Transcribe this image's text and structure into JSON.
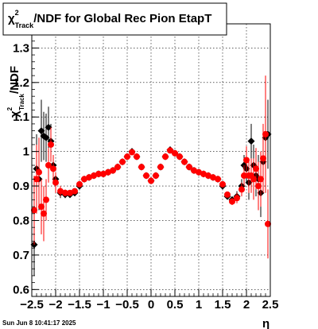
{
  "chart_data": {
    "type": "scatter",
    "title_parts": [
      "χ",
      "2",
      "Track",
      "/NDF for Global Rec Pion EtapT"
    ],
    "ylabel_parts": [
      "χ",
      "2",
      "Track",
      "/NDF"
    ],
    "xlabel": "η",
    "xlim": [
      -2.5,
      2.5
    ],
    "ylim": [
      0.58,
      1.37
    ],
    "grid": true,
    "x_ticks": [
      "−2.5",
      "−2",
      "−1.5",
      "−1",
      "−0.5",
      "0",
      "0.5",
      "1",
      "1.5",
      "2",
      "2.5"
    ],
    "x_tick_values": [
      -2.5,
      -2,
      -1.5,
      -1,
      -0.5,
      0,
      0.5,
      1,
      1.5,
      2,
      2.5
    ],
    "y_ticks": [
      "0.6",
      "0.7",
      "0.8",
      "0.9",
      "1",
      "1.1",
      "1.2",
      "1.3"
    ],
    "y_tick_values": [
      0.6,
      0.7,
      0.8,
      0.9,
      1.0,
      1.1,
      1.2,
      1.3
    ],
    "series": [
      {
        "color": "#000000",
        "points": [
          {
            "x": -2.45,
            "y": 0.73,
            "err": 0.09
          },
          {
            "x": -2.4,
            "y": 0.95,
            "err": 0.1
          },
          {
            "x": -2.35,
            "y": 0.92,
            "err": 0.09
          },
          {
            "x": -2.3,
            "y": 1.06,
            "err": 0.09
          },
          {
            "x": -2.25,
            "y": 1.045,
            "err": 0.07
          },
          {
            "x": -2.2,
            "y": 1.04,
            "err": 0.07
          },
          {
            "x": -2.15,
            "y": 1.07,
            "err": 0.06
          },
          {
            "x": -2.1,
            "y": 1.03,
            "err": 0.05
          },
          {
            "x": -2.05,
            "y": 0.96,
            "err": 0.03
          },
          {
            "x": -2.0,
            "y": 0.92,
            "err": 0.02
          },
          {
            "x": -1.9,
            "y": 0.88,
            "err": 0.015
          },
          {
            "x": -1.8,
            "y": 0.875,
            "err": 0.01
          },
          {
            "x": -1.7,
            "y": 0.875,
            "err": 0.008
          },
          {
            "x": -1.6,
            "y": 0.88,
            "err": 0.006
          },
          {
            "x": -1.5,
            "y": 0.9,
            "err": 0.005
          },
          {
            "x": -1.4,
            "y": 0.92,
            "err": 0.005
          },
          {
            "x": -1.3,
            "y": 0.925,
            "err": 0.005
          },
          {
            "x": -1.2,
            "y": 0.93,
            "err": 0.005
          },
          {
            "x": -1.1,
            "y": 0.935,
            "err": 0.005
          },
          {
            "x": -1.0,
            "y": 0.935,
            "err": 0.005
          },
          {
            "x": -0.9,
            "y": 0.94,
            "err": 0.005
          },
          {
            "x": -0.8,
            "y": 0.945,
            "err": 0.005
          },
          {
            "x": -0.7,
            "y": 0.955,
            "err": 0.005
          },
          {
            "x": -0.6,
            "y": 0.97,
            "err": 0.005
          },
          {
            "x": -0.5,
            "y": 0.985,
            "err": 0.005
          },
          {
            "x": -0.4,
            "y": 1.0,
            "err": 0.005
          },
          {
            "x": -0.3,
            "y": 0.985,
            "err": 0.005
          },
          {
            "x": -0.2,
            "y": 0.955,
            "err": 0.005
          },
          {
            "x": -0.1,
            "y": 0.93,
            "err": 0.005
          },
          {
            "x": 0.0,
            "y": 0.915,
            "err": 0.005
          },
          {
            "x": 0.1,
            "y": 0.93,
            "err": 0.005
          },
          {
            "x": 0.2,
            "y": 0.955,
            "err": 0.005
          },
          {
            "x": 0.3,
            "y": 0.985,
            "err": 0.005
          },
          {
            "x": 0.4,
            "y": 1.005,
            "err": 0.005
          },
          {
            "x": 0.5,
            "y": 0.995,
            "err": 0.005
          },
          {
            "x": 0.6,
            "y": 0.985,
            "err": 0.005
          },
          {
            "x": 0.7,
            "y": 0.97,
            "err": 0.005
          },
          {
            "x": 0.8,
            "y": 0.955,
            "err": 0.005
          },
          {
            "x": 0.9,
            "y": 0.945,
            "err": 0.005
          },
          {
            "x": 1.0,
            "y": 0.94,
            "err": 0.005
          },
          {
            "x": 1.1,
            "y": 0.935,
            "err": 0.005
          },
          {
            "x": 1.2,
            "y": 0.93,
            "err": 0.005
          },
          {
            "x": 1.3,
            "y": 0.925,
            "err": 0.005
          },
          {
            "x": 1.4,
            "y": 0.92,
            "err": 0.005
          },
          {
            "x": 1.5,
            "y": 0.9,
            "err": 0.006
          },
          {
            "x": 1.6,
            "y": 0.87,
            "err": 0.008
          },
          {
            "x": 1.7,
            "y": 0.86,
            "err": 0.01
          },
          {
            "x": 1.8,
            "y": 0.87,
            "err": 0.015
          },
          {
            "x": 1.9,
            "y": 0.9,
            "err": 0.02
          },
          {
            "x": 1.95,
            "y": 0.96,
            "err": 0.03
          },
          {
            "x": 2.0,
            "y": 0.95,
            "err": 0.04
          },
          {
            "x": 2.05,
            "y": 0.91,
            "err": 0.05
          },
          {
            "x": 2.1,
            "y": 1.03,
            "err": 0.05
          },
          {
            "x": 2.15,
            "y": 0.96,
            "err": 0.06
          },
          {
            "x": 2.2,
            "y": 0.93,
            "err": 0.06
          },
          {
            "x": 2.25,
            "y": 0.92,
            "err": 0.07
          },
          {
            "x": 2.3,
            "y": 0.88,
            "err": 0.07
          },
          {
            "x": 2.35,
            "y": 0.97,
            "err": 0.08
          },
          {
            "x": 2.4,
            "y": 1.04,
            "err": 0.08
          },
          {
            "x": 2.45,
            "y": 1.05,
            "err": 0.1
          }
        ]
      },
      {
        "color": "#ff0000",
        "points": [
          {
            "x": -2.45,
            "y": 0.83,
            "err": 0.1
          },
          {
            "x": -2.4,
            "y": 0.92,
            "err": 0.1
          },
          {
            "x": -2.35,
            "y": 0.94,
            "err": 0.1
          },
          {
            "x": -2.3,
            "y": 0.84,
            "err": 0.08
          },
          {
            "x": -2.25,
            "y": 0.82,
            "err": 0.08
          },
          {
            "x": -2.2,
            "y": 0.86,
            "err": 0.06
          },
          {
            "x": -2.15,
            "y": 0.96,
            "err": 0.05
          },
          {
            "x": -2.1,
            "y": 1.02,
            "err": 0.05
          },
          {
            "x": -2.05,
            "y": 0.95,
            "err": 0.04
          },
          {
            "x": -2.0,
            "y": 0.91,
            "err": 0.03
          },
          {
            "x": -1.9,
            "y": 0.885,
            "err": 0.015
          },
          {
            "x": -1.8,
            "y": 0.88,
            "err": 0.01
          },
          {
            "x": -1.7,
            "y": 0.88,
            "err": 0.008
          },
          {
            "x": -1.6,
            "y": 0.885,
            "err": 0.006
          },
          {
            "x": -1.5,
            "y": 0.905,
            "err": 0.005
          },
          {
            "x": -1.4,
            "y": 0.92,
            "err": 0.005
          },
          {
            "x": -1.3,
            "y": 0.925,
            "err": 0.005
          },
          {
            "x": -1.2,
            "y": 0.93,
            "err": 0.005
          },
          {
            "x": -1.1,
            "y": 0.935,
            "err": 0.005
          },
          {
            "x": -1.0,
            "y": 0.935,
            "err": 0.005
          },
          {
            "x": -0.9,
            "y": 0.94,
            "err": 0.005
          },
          {
            "x": -0.8,
            "y": 0.945,
            "err": 0.005
          },
          {
            "x": -0.7,
            "y": 0.955,
            "err": 0.005
          },
          {
            "x": -0.6,
            "y": 0.97,
            "err": 0.005
          },
          {
            "x": -0.5,
            "y": 0.985,
            "err": 0.005
          },
          {
            "x": -0.4,
            "y": 0.998,
            "err": 0.005
          },
          {
            "x": -0.3,
            "y": 0.985,
            "err": 0.005
          },
          {
            "x": -0.2,
            "y": 0.955,
            "err": 0.005
          },
          {
            "x": -0.1,
            "y": 0.93,
            "err": 0.005
          },
          {
            "x": 0.0,
            "y": 0.915,
            "err": 0.005
          },
          {
            "x": 0.1,
            "y": 0.93,
            "err": 0.005
          },
          {
            "x": 0.2,
            "y": 0.955,
            "err": 0.005
          },
          {
            "x": 0.3,
            "y": 0.985,
            "err": 0.005
          },
          {
            "x": 0.4,
            "y": 1.003,
            "err": 0.005
          },
          {
            "x": 0.5,
            "y": 0.995,
            "err": 0.005
          },
          {
            "x": 0.6,
            "y": 0.985,
            "err": 0.005
          },
          {
            "x": 0.7,
            "y": 0.97,
            "err": 0.005
          },
          {
            "x": 0.8,
            "y": 0.955,
            "err": 0.005
          },
          {
            "x": 0.9,
            "y": 0.945,
            "err": 0.005
          },
          {
            "x": 1.0,
            "y": 0.94,
            "err": 0.005
          },
          {
            "x": 1.1,
            "y": 0.935,
            "err": 0.005
          },
          {
            "x": 1.2,
            "y": 0.93,
            "err": 0.005
          },
          {
            "x": 1.3,
            "y": 0.925,
            "err": 0.005
          },
          {
            "x": 1.4,
            "y": 0.92,
            "err": 0.005
          },
          {
            "x": 1.5,
            "y": 0.905,
            "err": 0.006
          },
          {
            "x": 1.6,
            "y": 0.875,
            "err": 0.008
          },
          {
            "x": 1.7,
            "y": 0.855,
            "err": 0.01
          },
          {
            "x": 1.8,
            "y": 0.865,
            "err": 0.015
          },
          {
            "x": 1.9,
            "y": 0.89,
            "err": 0.02
          },
          {
            "x": 1.95,
            "y": 0.93,
            "err": 0.03
          },
          {
            "x": 2.0,
            "y": 0.975,
            "err": 0.04
          },
          {
            "x": 2.05,
            "y": 0.93,
            "err": 0.05
          },
          {
            "x": 2.1,
            "y": 0.93,
            "err": 0.05
          },
          {
            "x": 2.15,
            "y": 0.92,
            "err": 0.06
          },
          {
            "x": 2.2,
            "y": 0.95,
            "err": 0.06
          },
          {
            "x": 2.25,
            "y": 0.9,
            "err": 0.07
          },
          {
            "x": 2.3,
            "y": 0.92,
            "err": 0.08
          },
          {
            "x": 2.35,
            "y": 0.98,
            "err": 0.1
          },
          {
            "x": 2.4,
            "y": 1.05,
            "err": 0.17
          },
          {
            "x": 2.45,
            "y": 0.79,
            "err": 0.1
          }
        ]
      }
    ]
  },
  "stamp": "Sun Jun  8 10:41:17 2025"
}
